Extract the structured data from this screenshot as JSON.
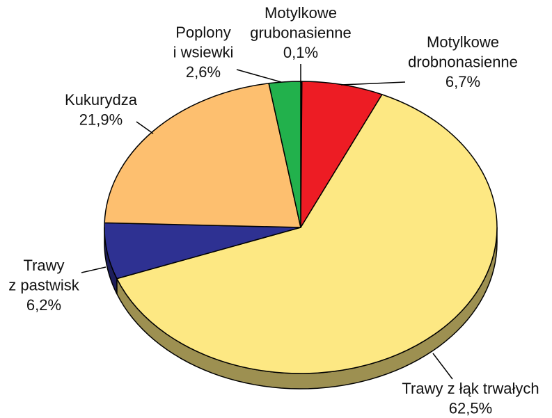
{
  "chart_data": {
    "type": "pie",
    "categories": [
      [
        "Motylkowe",
        "grubonasienne"
      ],
      [
        "Motylkowe",
        "drobnonasienne"
      ],
      [
        "Trawy z łąk trwałych"
      ],
      [
        "Trawy",
        "z pastwisk"
      ],
      [
        "Kukurydza"
      ],
      [
        "Poplony",
        "i wsiewki"
      ]
    ],
    "values": [
      0.1,
      6.7,
      62.5,
      6.2,
      21.9,
      2.6
    ],
    "value_labels": [
      "0,1%",
      "6,7%",
      "62,5%",
      "6,2%",
      "21,9%",
      "2,6%"
    ],
    "colors": [
      "#5a1a10",
      "#ed1c24",
      "#fde883",
      "#2e3192",
      "#fdbf6f",
      "#22b14c"
    ]
  }
}
